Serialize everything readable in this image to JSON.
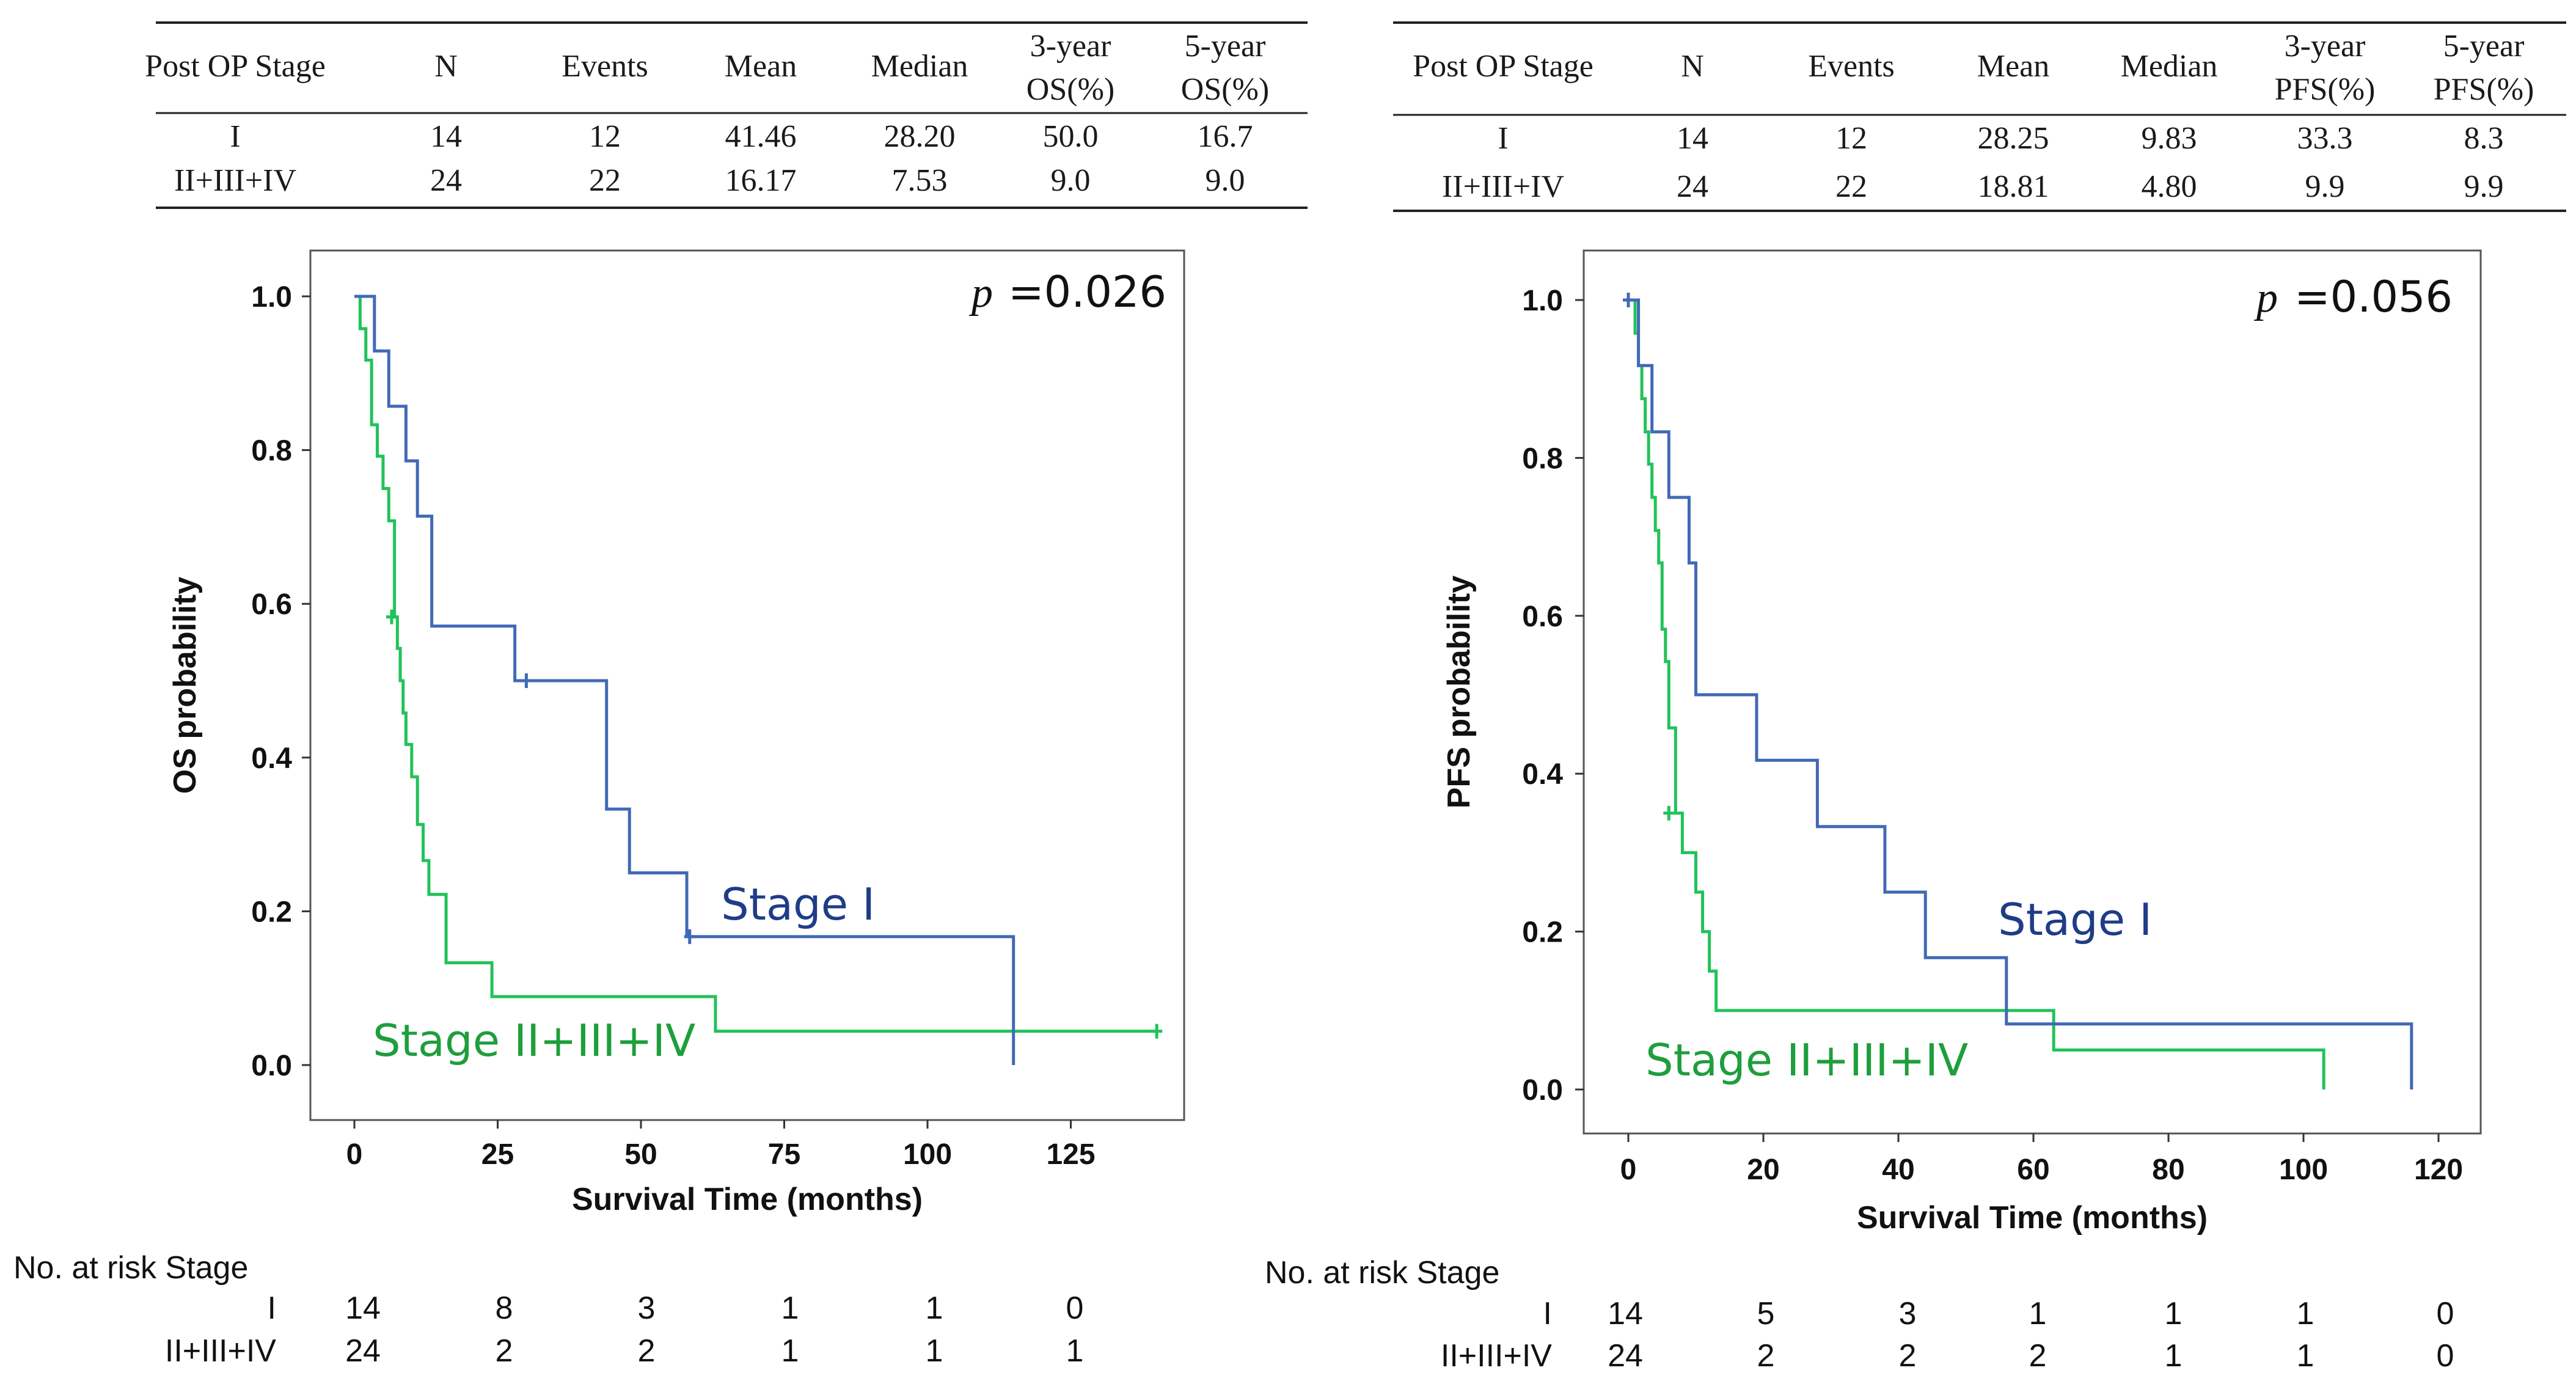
{
  "figure": {
    "panels": [
      {
        "id": "os",
        "table": {
          "headers": [
            [
              "Post OP Stage"
            ],
            [
              "N"
            ],
            [
              "Events"
            ],
            [
              "Mean"
            ],
            [
              "Median"
            ],
            [
              "3-year",
              "OS(%)"
            ],
            [
              "5-year",
              "OS(%)"
            ]
          ],
          "rows": [
            [
              "I",
              "14",
              "12",
              "41.46",
              "28.20",
              "50.0",
              "16.7"
            ],
            [
              "II+III+IV",
              "24",
              "22",
              "16.17",
              "7.53",
              "9.0",
              "9.0"
            ]
          ]
        },
        "p_symbol": "p",
        "p_value": "=0.026",
        "risk_table": {
          "header": "No. at risk  Stage",
          "rows": [
            {
              "label": "I",
              "counts": [
                "14",
                "8",
                "3",
                "1",
                "1",
                "0"
              ]
            },
            {
              "label": "II+III+IV",
              "counts": [
                "24",
                "2",
                "2",
                "1",
                "1",
                "1"
              ]
            }
          ]
        }
      },
      {
        "id": "pfs",
        "table": {
          "headers": [
            [
              "Post OP Stage"
            ],
            [
              "N"
            ],
            [
              "Events"
            ],
            [
              "Mean"
            ],
            [
              "Median"
            ],
            [
              "3-year",
              "PFS(%)"
            ],
            [
              "5-year",
              "PFS(%)"
            ]
          ],
          "rows": [
            [
              "I",
              "14",
              "12",
              "28.25",
              "9.83",
              "33.3",
              "8.3"
            ],
            [
              "II+III+IV",
              "24",
              "22",
              "18.81",
              "4.80",
              "9.9",
              "9.9"
            ]
          ]
        },
        "p_symbol": "p",
        "p_value": "=0.056",
        "risk_table": {
          "header": "No. at risk  Stage",
          "rows": [
            {
              "label": "I",
              "counts": [
                "14",
                "5",
                "3",
                "1",
                "1",
                "1",
                "0"
              ]
            },
            {
              "label": "II+III+IV",
              "counts": [
                "24",
                "2",
                "2",
                "2",
                "1",
                "1",
                "0"
              ]
            }
          ]
        }
      }
    ]
  },
  "chart_data": [
    {
      "type": "line",
      "step": true,
      "title": "",
      "xlabel": "Survival Time (months)",
      "ylabel": "OS probability",
      "xlim": [
        -5,
        145
      ],
      "ylim": [
        -0.08,
        1.06
      ],
      "xticks": [
        0,
        25,
        50,
        75,
        100,
        125
      ],
      "yticks": [
        0.0,
        0.2,
        0.4,
        0.6,
        0.8,
        1.0
      ],
      "ytick_labels": [
        "0.0",
        "0.2",
        "0.4",
        "0.6",
        "0.8",
        "1.0"
      ],
      "grid": false,
      "series": [
        {
          "name": "Stage I",
          "color": "#4169b7",
          "label_color": "#1f3c88",
          "x": [
            0,
            3.5,
            6,
            9,
            11,
            13.5,
            28,
            44,
            48,
            58,
            115,
            115
          ],
          "y": [
            1.0,
            0.929,
            0.857,
            0.786,
            0.714,
            0.571,
            0.5,
            0.333,
            0.25,
            0.167,
            0.167,
            0.0
          ],
          "censored": [
            [
              30,
              0.5
            ],
            [
              58.5,
              0.167
            ]
          ]
        },
        {
          "name": "Stage II+III+IV",
          "color": "#22c25a",
          "label_color": "#1e9e3c",
          "x": [
            0,
            1,
            2,
            3,
            4,
            5,
            6,
            7,
            7.5,
            8,
            8.5,
            9,
            10,
            11,
            12,
            13,
            16,
            24,
            63,
            140
          ],
          "y": [
            1.0,
            0.958,
            0.917,
            0.833,
            0.792,
            0.75,
            0.708,
            0.583,
            0.542,
            0.5,
            0.458,
            0.417,
            0.375,
            0.313,
            0.266,
            0.222,
            0.133,
            0.089,
            0.044,
            0.044
          ],
          "censored": [
            [
              6.5,
              0.583
            ],
            [
              140,
              0.044
            ]
          ]
        }
      ]
    },
    {
      "type": "line",
      "step": true,
      "title": "",
      "xlabel": "Survival Time (months)",
      "ylabel": "PFS probability",
      "xlim": [
        -6,
        125
      ],
      "ylim": [
        -0.04,
        1.06
      ],
      "xticks": [
        0,
        20,
        40,
        60,
        80,
        100,
        120
      ],
      "yticks": [
        0.0,
        0.2,
        0.4,
        0.6,
        0.8,
        1.0
      ],
      "ytick_labels": [
        "0.0",
        "0.2",
        "0.4",
        "0.6",
        "0.8",
        "1.0"
      ],
      "grid": false,
      "series": [
        {
          "name": "Stage I",
          "color": "#4169b7",
          "label_color": "#1f3c88",
          "x": [
            0,
            1.5,
            3.5,
            6,
            9,
            10,
            19,
            28,
            38,
            44,
            56,
            116,
            116
          ],
          "y": [
            1.0,
            0.917,
            0.833,
            0.75,
            0.667,
            0.5,
            0.417,
            0.333,
            0.25,
            0.167,
            0.083,
            0.083,
            0.0
          ],
          "censored": [
            [
              0,
              1.0
            ]
          ]
        },
        {
          "name": "Stage II+III+IV",
          "color": "#22c25a",
          "label_color": "#1e9e3c",
          "x": [
            0,
            1,
            1.5,
            2,
            2.5,
            3,
            3.5,
            4,
            4.5,
            5,
            5.5,
            6,
            7,
            8,
            10,
            11,
            12,
            13,
            63,
            103,
            103
          ],
          "y": [
            1.0,
            0.958,
            0.917,
            0.875,
            0.833,
            0.792,
            0.75,
            0.708,
            0.667,
            0.583,
            0.542,
            0.458,
            0.35,
            0.3,
            0.25,
            0.2,
            0.15,
            0.1,
            0.05,
            0.05,
            0.0
          ],
          "censored": [
            [
              0,
              1.0
            ],
            [
              6,
              0.35
            ]
          ]
        }
      ]
    }
  ]
}
